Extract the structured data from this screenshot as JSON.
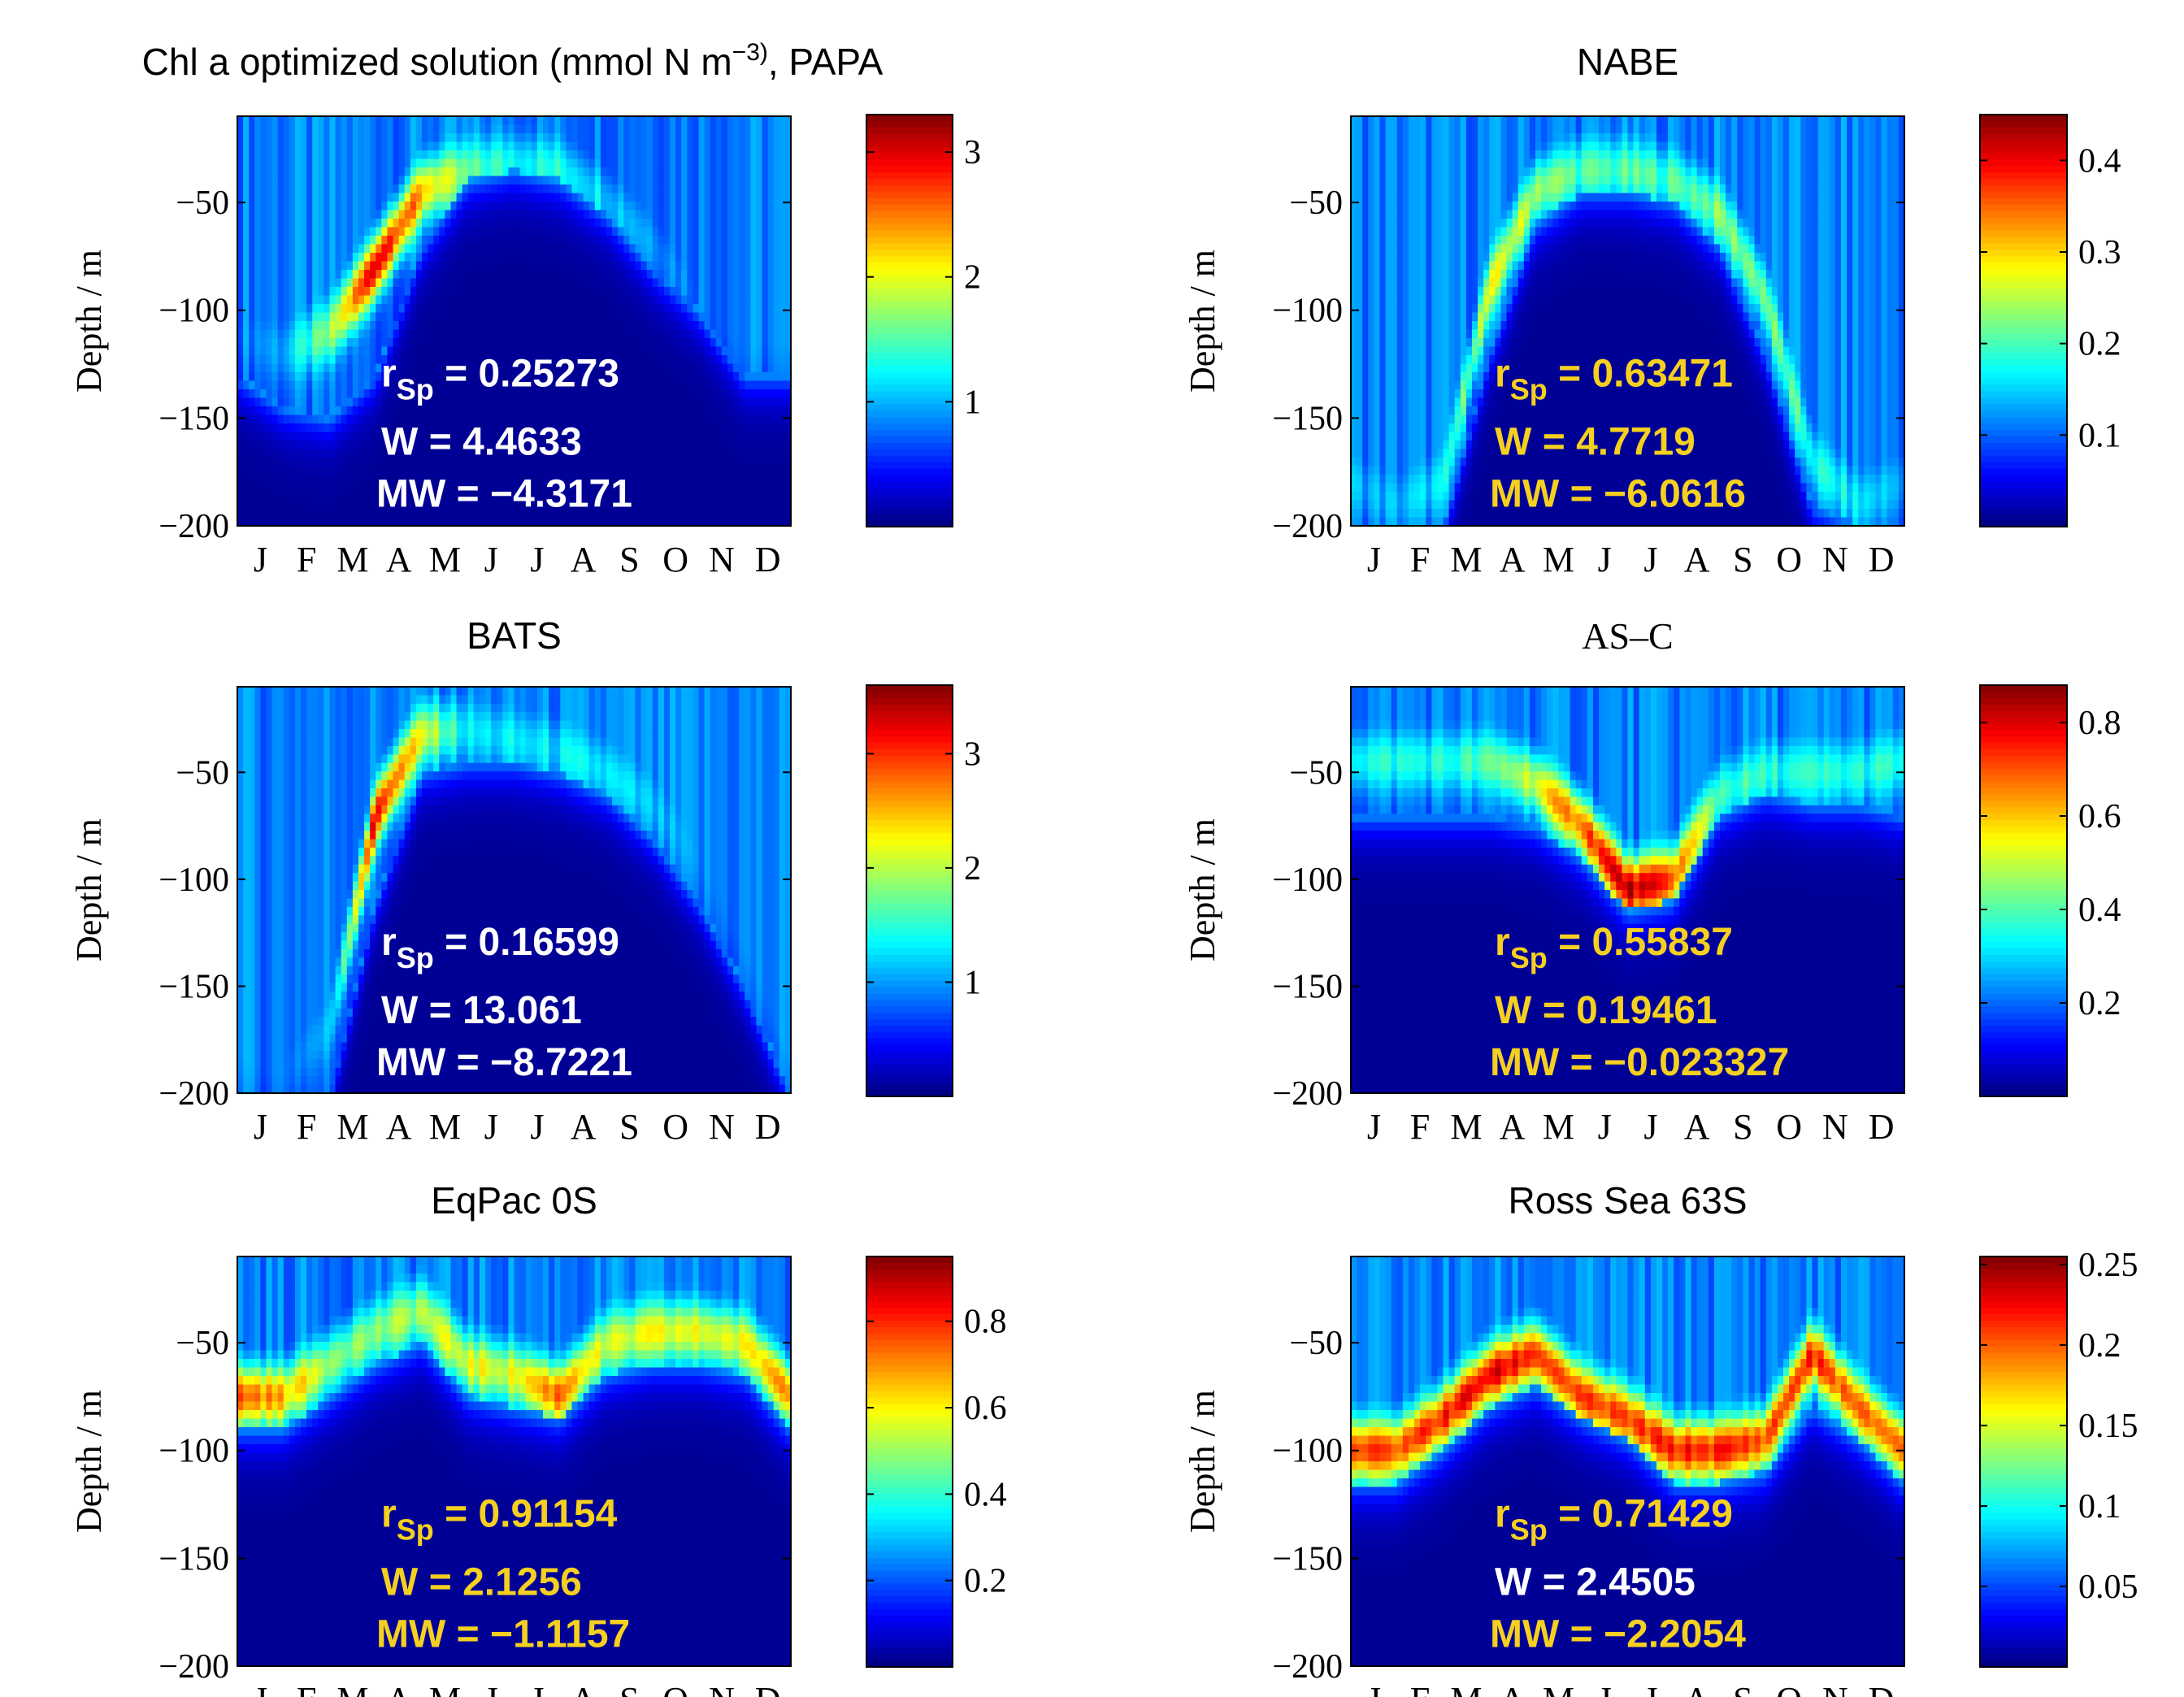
{
  "chart_data": [
    {
      "type": "heatmap",
      "title": "Chl a optimized solution (mmol N m−3), PAPA",
      "title_main": "Chl a optimized solution (mmol N m",
      "title_sup": "−3)",
      "title_tail": ", PAPA",
      "title_font": "sans",
      "ylabel": "Depth / m",
      "ylim": [
        -200,
        -10
      ],
      "yticks": [
        -50,
        -100,
        -150,
        -200
      ],
      "ytick_labels": [
        "−50",
        "−100",
        "−150",
        "−200"
      ],
      "x_tick_labels": [
        "J",
        "F",
        "M",
        "A",
        "M",
        "J",
        "J",
        "A",
        "S",
        "O",
        "N",
        "D"
      ],
      "colorbar_ticks": [
        1,
        2,
        3
      ],
      "colorbar_tick_labels": [
        "1",
        "2",
        "3"
      ],
      "colorbar_range": [
        0,
        3.3
      ],
      "stats_color": "#ffffff",
      "stats": {
        "rsp": "0.25273",
        "w": "4.4633",
        "mw": "−4.3171"
      },
      "pattern": {
        "mld_depth": [
          130,
          145,
          150,
          130,
          70,
          40,
          35,
          40,
          55,
          80,
          100,
          130
        ],
        "dcm_depth": [
          110,
          120,
          110,
          80,
          45,
          35,
          32,
          35,
          50,
          70,
          95,
          115
        ],
        "max_rel": [
          0.25,
          0.3,
          0.5,
          0.95,
          0.7,
          0.45,
          0.4,
          0.4,
          0.35,
          0.3,
          0.25,
          0.25
        ]
      }
    },
    {
      "type": "heatmap",
      "title": "NABE",
      "title_font": "sans",
      "ylabel": "Depth / m",
      "ylim": [
        -200,
        -10
      ],
      "yticks": [
        -50,
        -100,
        -150,
        -200
      ],
      "ytick_labels": [
        "−50",
        "−100",
        "−150",
        "−200"
      ],
      "x_tick_labels": [
        "J",
        "F",
        "M",
        "A",
        "M",
        "J",
        "J",
        "A",
        "S",
        "O",
        "N",
        "D"
      ],
      "colorbar_ticks": [
        0.1,
        0.2,
        0.3,
        0.4
      ],
      "colorbar_tick_labels": [
        "0.1",
        "0.2",
        "0.3",
        "0.4"
      ],
      "colorbar_range": [
        0,
        0.45
      ],
      "stats_color": "#f5d020",
      "stats": {
        "rsp": "0.63471",
        "w": "4.7719",
        "mw": "−6.0616"
      },
      "pattern": {
        "mld_depth": [
          200,
          200,
          200,
          120,
          60,
          45,
          45,
          50,
          70,
          120,
          190,
          200
        ],
        "dcm_depth": [
          180,
          190,
          180,
          90,
          45,
          35,
          35,
          40,
          55,
          95,
          170,
          190
        ],
        "max_rel": [
          0.3,
          0.3,
          0.35,
          0.6,
          0.55,
          0.45,
          0.45,
          0.45,
          0.5,
          0.5,
          0.4,
          0.35
        ]
      }
    },
    {
      "type": "heatmap",
      "title": "BATS",
      "title_font": "sans",
      "ylabel": "Depth / m",
      "ylim": [
        -200,
        -10
      ],
      "yticks": [
        -50,
        -100,
        -150,
        -200
      ],
      "ytick_labels": [
        "−50",
        "−100",
        "−150",
        "−200"
      ],
      "x_tick_labels": [
        "J",
        "F",
        "M",
        "A",
        "M",
        "J",
        "J",
        "A",
        "S",
        "O",
        "N",
        "D"
      ],
      "colorbar_ticks": [
        1,
        2,
        3
      ],
      "colorbar_tick_labels": [
        "1",
        "2",
        "3"
      ],
      "colorbar_range": [
        0,
        3.6
      ],
      "stats_color": "#ffffff",
      "stats": {
        "rsp": "0.16599",
        "w": "13.061",
        "mw": "−8.7221"
      },
      "pattern": {
        "mld_depth": [
          200,
          200,
          200,
          110,
          50,
          45,
          45,
          50,
          60,
          80,
          110,
          150
        ],
        "dcm_depth": [
          180,
          190,
          170,
          70,
          32,
          30,
          35,
          40,
          50,
          65,
          90,
          130
        ],
        "max_rel": [
          0.25,
          0.25,
          0.3,
          0.9,
          0.6,
          0.35,
          0.35,
          0.35,
          0.35,
          0.3,
          0.25,
          0.25
        ]
      }
    },
    {
      "type": "heatmap",
      "title": "AS–C",
      "title_font": "serif",
      "ylabel": "Depth / m",
      "ylim": [
        -200,
        -10
      ],
      "yticks": [
        -50,
        -100,
        -150,
        -200
      ],
      "ytick_labels": [
        "−50",
        "−100",
        "−150",
        "−200"
      ],
      "x_tick_labels": [
        "J",
        "F",
        "M",
        "A",
        "M",
        "J",
        "J",
        "A",
        "S",
        "O",
        "N",
        "D"
      ],
      "colorbar_ticks": [
        0.2,
        0.4,
        0.6,
        0.8
      ],
      "colorbar_tick_labels": [
        "0.2",
        "0.4",
        "0.6",
        "0.8"
      ],
      "colorbar_range": [
        0,
        0.88
      ],
      "stats_color": "#f5d020",
      "stats": {
        "rsp": "0.55837",
        "w": "0.19461",
        "mw": "−0.023327"
      },
      "pattern": {
        "mld_depth": [
          70,
          70,
          70,
          70,
          75,
          90,
          115,
          110,
          70,
          60,
          65,
          65
        ],
        "dcm_depth": [
          45,
          45,
          45,
          45,
          55,
          75,
          105,
          100,
          60,
          50,
          50,
          50
        ],
        "max_rel": [
          0.4,
          0.4,
          0.4,
          0.45,
          0.6,
          0.8,
          0.95,
          0.8,
          0.45,
          0.4,
          0.4,
          0.4
        ]
      }
    },
    {
      "type": "heatmap",
      "title": "EqPac 0S",
      "title_font": "sans",
      "ylabel": "Depth / m",
      "ylim": [
        -200,
        -10
      ],
      "yticks": [
        -50,
        -100,
        -150,
        -200
      ],
      "ytick_labels": [
        "−50",
        "−100",
        "−150",
        "−200"
      ],
      "x_tick_labels": [
        "J",
        "F",
        "M",
        "A",
        "M",
        "J",
        "J",
        "A",
        "S",
        "O",
        "N",
        "D"
      ],
      "colorbar_ticks": [
        0.2,
        0.4,
        0.6,
        0.8
      ],
      "colorbar_tick_labels": [
        "0.2",
        "0.4",
        "0.6",
        "0.8"
      ],
      "colorbar_range": [
        0,
        0.95
      ],
      "stats_color": "#f5d020",
      "stats": {
        "rsp": "0.91154",
        "w": "2.1256",
        "mw": "−1.1157"
      },
      "pattern": {
        "mld_depth": [
          90,
          90,
          75,
          60,
          50,
          75,
          80,
          85,
          65,
          60,
          60,
          65
        ],
        "dcm_depth": [
          75,
          75,
          60,
          45,
          35,
          60,
          65,
          75,
          50,
          45,
          45,
          50
        ],
        "max_rel": [
          0.8,
          0.7,
          0.55,
          0.5,
          0.55,
          0.6,
          0.6,
          0.8,
          0.55,
          0.6,
          0.6,
          0.6
        ]
      }
    },
    {
      "type": "heatmap",
      "title": "Ross Sea 63S",
      "title_font": "sans",
      "ylabel": "Depth / m",
      "ylim": [
        -200,
        -10
      ],
      "yticks": [
        -50,
        -100,
        -150,
        -200
      ],
      "ytick_labels": [
        "−50",
        "−100",
        "−150",
        "−200"
      ],
      "x_tick_labels": [
        "J",
        "F",
        "M",
        "A",
        "M",
        "J",
        "J",
        "A",
        "S",
        "O",
        "N",
        "D"
      ],
      "colorbar_ticks": [
        0.05,
        0.1,
        0.15,
        0.2,
        0.25
      ],
      "colorbar_tick_labels": [
        "0.05",
        "0.1",
        "0.15",
        "0.2",
        "0.25"
      ],
      "colorbar_range": [
        0,
        0.255
      ],
      "stats_color": "#ffffff",
      "stats_colors": {
        "rsp": "#f5d020",
        "w": "#ffffff",
        "mw": "#f5d020"
      },
      "stats": {
        "rsp": "0.71429",
        "w": "2.4505",
        "mw": "−2.2054"
      },
      "pattern": {
        "mld_depth": [
          115,
          115,
          100,
          80,
          70,
          85,
          95,
          115,
          115,
          110,
          80,
          95
        ],
        "dcm_depth": [
          100,
          100,
          85,
          65,
          55,
          75,
          85,
          100,
          100,
          95,
          55,
          80
        ],
        "max_rel": [
          0.8,
          0.8,
          0.85,
          0.9,
          0.85,
          0.8,
          0.8,
          0.85,
          0.85,
          0.8,
          0.85,
          0.75
        ]
      }
    }
  ],
  "stat_labels": {
    "r": "r",
    "sp": "Sp",
    "w": "W",
    "mw": "MW"
  }
}
